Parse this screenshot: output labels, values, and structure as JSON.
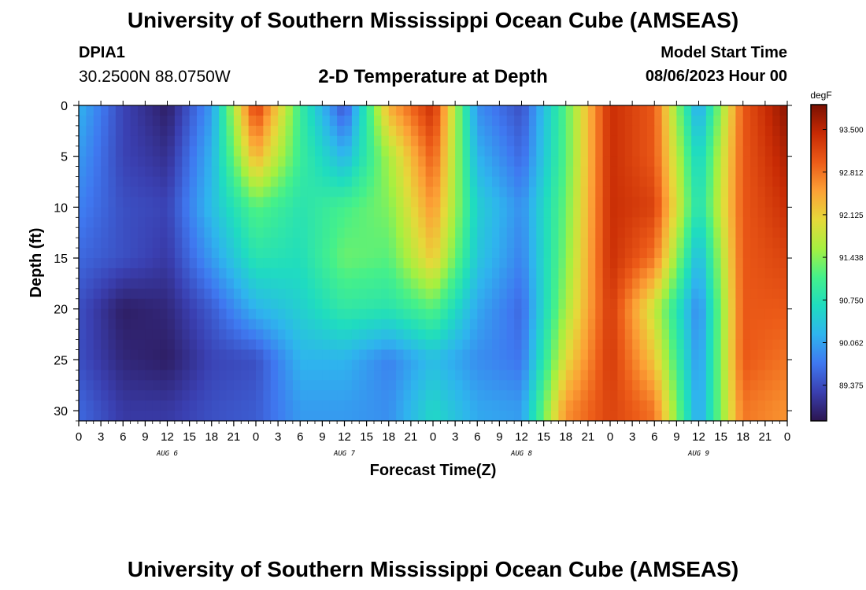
{
  "header": {
    "title": "University of Southern Mississippi Ocean Cube (AMSEAS)",
    "station_id": "DPIA1",
    "station_coords": "30.2500N  88.0750W",
    "plot_title": "2-D Temperature at Depth",
    "model_start_label": "Model Start Time",
    "model_start_value": "08/06/2023 Hour 00"
  },
  "footer": {
    "title": "University of Southern Mississippi Ocean Cube (AMSEAS)"
  },
  "chart_data": {
    "type": "heatmap",
    "title": "2-D Temperature at Depth",
    "xlabel": "Forecast Time(Z)",
    "ylabel": "Depth (ft)",
    "x_tick_labels": [
      "0",
      "3",
      "6",
      "9",
      "12",
      "15",
      "18",
      "21",
      "0",
      "3",
      "6",
      "9",
      "12",
      "15",
      "18",
      "21",
      "0",
      "3",
      "6",
      "9",
      "12",
      "15",
      "18",
      "21",
      "0",
      "3",
      "6",
      "9",
      "12",
      "15",
      "18",
      "21",
      "0"
    ],
    "x_hours": [
      0,
      96
    ],
    "x_day_labels": [
      {
        "label": "AUG 6",
        "hour": 12
      },
      {
        "label": "AUG 7",
        "hour": 36
      },
      {
        "label": "AUG 8",
        "hour": 60
      },
      {
        "label": "AUG 9",
        "hour": 84
      }
    ],
    "y_tick_labels": [
      "0",
      "5",
      "10",
      "15",
      "20",
      "25",
      "30"
    ],
    "ylim": [
      0,
      31
    ],
    "y_inverted": true,
    "colorbar": {
      "unit": "degF",
      "tick_labels": [
        "93.500",
        "92.812",
        "92.125",
        "91.438",
        "90.750",
        "90.062",
        "89.375"
      ],
      "tick_values": [
        93.5,
        92.812,
        92.125,
        91.438,
        90.75,
        90.062,
        89.375
      ],
      "range": [
        88.8,
        93.9
      ],
      "colors": [
        "#2b1550",
        "#3a3fb0",
        "#3f78f0",
        "#2fb4ee",
        "#1fdcc0",
        "#45f08a",
        "#a6f040",
        "#e6d93a",
        "#fca136",
        "#ec5b18",
        "#c72a04",
        "#7a1002"
      ]
    },
    "x_hours_grid": [
      0,
      6,
      12,
      18,
      24,
      30,
      36,
      42,
      48,
      54,
      60,
      66,
      72,
      78,
      84,
      90,
      96
    ],
    "depth_grid_ft": [
      0,
      5,
      10,
      15,
      20,
      25,
      30
    ],
    "values_degF": [
      [
        90.2,
        89.3,
        88.9,
        90.0,
        93.3,
        91.0,
        89.4,
        92.4,
        93.4,
        89.9,
        89.4,
        91.2,
        93.4,
        93.0,
        90.0,
        93.0,
        93.8
      ],
      [
        90.0,
        89.3,
        89.1,
        90.2,
        92.4,
        91.0,
        90.2,
        91.6,
        93.0,
        90.2,
        89.6,
        91.2,
        93.4,
        93.0,
        90.5,
        93.0,
        93.6
      ],
      [
        89.8,
        89.4,
        89.3,
        90.3,
        91.2,
        90.8,
        91.1,
        91.4,
        92.6,
        90.5,
        89.9,
        91.3,
        93.4,
        93.2,
        90.7,
        93.0,
        93.4
      ],
      [
        89.6,
        89.4,
        89.2,
        90.0,
        90.8,
        90.7,
        91.3,
        91.2,
        92.2,
        90.4,
        89.8,
        91.4,
        93.4,
        92.8,
        90.2,
        93.0,
        93.2
      ],
      [
        89.4,
        88.9,
        89.0,
        89.5,
        90.2,
        90.5,
        90.9,
        90.8,
        91.2,
        90.1,
        89.6,
        91.6,
        93.3,
        91.8,
        89.8,
        93.0,
        93.0
      ],
      [
        89.4,
        89.0,
        88.9,
        89.3,
        89.4,
        90.2,
        90.2,
        89.8,
        90.3,
        89.9,
        89.7,
        92.0,
        93.3,
        92.2,
        89.9,
        93.0,
        92.8
      ],
      [
        89.6,
        89.2,
        89.2,
        89.4,
        89.5,
        90.0,
        90.0,
        89.9,
        90.6,
        90.1,
        90.0,
        92.6,
        93.2,
        92.8,
        90.0,
        92.8,
        92.6
      ]
    ]
  }
}
